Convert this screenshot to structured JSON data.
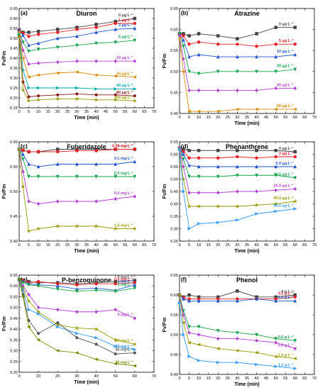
{
  "chart_data": [
    {
      "type": "line",
      "letter": "(a)",
      "title": "Diuron",
      "xlabel": "Time (min)",
      "ylabel": "Fv/Fm",
      "xlim": [
        0,
        70
      ],
      "ylim": [
        0.15,
        0.65
      ],
      "xticks": [
        0,
        5,
        10,
        15,
        20,
        25,
        30,
        35,
        40,
        45,
        50,
        55,
        60,
        65,
        70
      ],
      "yticks": [
        0.15,
        0.2,
        0.25,
        0.3,
        0.35,
        0.4,
        0.45,
        0.5,
        0.55,
        0.6,
        0.65
      ],
      "x": [
        0,
        2,
        5,
        10,
        20,
        30,
        40,
        50,
        60
      ],
      "series": [
        {
          "name": "0 μg·L⁻¹",
          "color": "#444444",
          "marker": "square",
          "values": [
            0.54,
            0.53,
            0.53,
            0.535,
            0.545,
            0.555,
            0.57,
            0.585,
            0.6
          ]
        },
        {
          "name": "1 μg·L⁻¹",
          "color": "#e8202a",
          "marker": "circle",
          "values": [
            0.54,
            0.525,
            0.51,
            0.52,
            0.53,
            0.545,
            0.555,
            0.575,
            0.575
          ]
        },
        {
          "name": "3 μg·L⁻¹",
          "color": "#2255cc",
          "marker": "triangle",
          "values": [
            0.54,
            0.515,
            0.465,
            0.475,
            0.5,
            0.51,
            0.53,
            0.545,
            0.55
          ]
        },
        {
          "name": "5 μg·L⁻¹",
          "color": "#15a34a",
          "marker": "triangle-down",
          "values": [
            0.53,
            0.48,
            0.435,
            0.445,
            0.455,
            0.465,
            0.475,
            0.48,
            0.49
          ]
        },
        {
          "name": "10 μg·L⁻¹",
          "color": "#b040d0",
          "marker": "diamond",
          "values": [
            0.53,
            0.44,
            0.37,
            0.375,
            0.38,
            0.385,
            0.385,
            0.385,
            0.385
          ]
        },
        {
          "name": "20 μg·L⁻¹",
          "color": "#d68a00",
          "marker": "triangle-left",
          "values": [
            0.53,
            0.4,
            0.305,
            0.315,
            0.325,
            0.33,
            0.315,
            0.31,
            0.305
          ]
        },
        {
          "name": "40 μg·L⁻¹",
          "color": "#00aaaa",
          "marker": "triangle-right",
          "values": [
            0.52,
            0.34,
            0.25,
            0.25,
            0.25,
            0.25,
            0.245,
            0.245,
            0.245
          ]
        },
        {
          "name": "80 μg·L⁻¹",
          "color": "#8b1a1a",
          "marker": "hexagon",
          "values": [
            0.51,
            0.28,
            0.205,
            0.21,
            0.215,
            0.22,
            0.215,
            0.215,
            0.21
          ]
        },
        {
          "name": "160 μg·L⁻¹",
          "color": "#9a9a00",
          "marker": "star",
          "values": [
            0.51,
            0.24,
            0.185,
            0.19,
            0.195,
            0.195,
            0.19,
            0.19,
            0.185
          ]
        }
      ]
    },
    {
      "type": "line",
      "letter": "(b)",
      "title": "Atrazine",
      "xlabel": "Time (min)",
      "ylabel": "Fv/Fm",
      "xlim": [
        0,
        70
      ],
      "ylim": [
        0.4,
        0.65
      ],
      "xticks": [
        0,
        5,
        10,
        15,
        20,
        25,
        30,
        35,
        40,
        45,
        50,
        55,
        60,
        65,
        70
      ],
      "yticks": [
        0.4,
        0.45,
        0.5,
        0.55,
        0.6,
        0.65
      ],
      "x": [
        0,
        2,
        5,
        10,
        20,
        30,
        40,
        50,
        60
      ],
      "series": [
        {
          "name": "0 μg·L⁻¹",
          "color": "#444444",
          "marker": "square",
          "values": [
            0.59,
            0.59,
            0.585,
            0.59,
            0.585,
            0.578,
            0.59,
            0.605,
            0.605
          ]
        },
        {
          "name": "5 μg·L⁻¹",
          "color": "#e8202a",
          "marker": "circle",
          "values": [
            0.59,
            0.585,
            0.565,
            0.57,
            0.565,
            0.565,
            0.56,
            0.565,
            0.565
          ]
        },
        {
          "name": "10 μg·L⁻¹",
          "color": "#2255cc",
          "marker": "triangle",
          "values": [
            0.59,
            0.575,
            0.535,
            0.54,
            0.535,
            0.535,
            0.535,
            0.535,
            0.54
          ]
        },
        {
          "name": "20 μg·L⁻¹",
          "color": "#15a34a",
          "marker": "triangle-down",
          "values": [
            0.59,
            0.56,
            0.5,
            0.495,
            0.5,
            0.5,
            0.5,
            0.5,
            0.505
          ]
        },
        {
          "name": "40 μg·L⁻¹",
          "color": "#b040d0",
          "marker": "diamond",
          "values": [
            0.585,
            0.53,
            0.455,
            0.455,
            0.455,
            0.455,
            0.455,
            0.46,
            0.46
          ]
        },
        {
          "name": "50 μg·L⁻¹",
          "color": "#d68a00",
          "marker": "triangle-left",
          "values": [
            0.58,
            0.5,
            0.405,
            0.405,
            0.405,
            0.41,
            0.41,
            0.41,
            0.41
          ]
        }
      ]
    },
    {
      "type": "line",
      "letter": "(c)",
      "title": "Fuberidazole",
      "xlabel": "Time (min)",
      "ylabel": "Fv/Fm",
      "xlim": [
        0,
        70
      ],
      "ylim": [
        0.4,
        0.6
      ],
      "xticks": [
        0,
        5,
        10,
        15,
        20,
        25,
        30,
        35,
        40,
        45,
        50,
        55,
        60,
        65,
        70
      ],
      "yticks": [
        0.4,
        0.45,
        0.5,
        0.55,
        0.6
      ],
      "x": [
        0,
        2,
        5,
        10,
        20,
        30,
        40,
        50,
        60
      ],
      "series": [
        {
          "name": "0 mg·L⁻¹",
          "color": "#444444",
          "marker": "square",
          "values": [
            0.585,
            0.583,
            0.58,
            0.58,
            0.585,
            0.585,
            0.585,
            0.585,
            0.585
          ]
        },
        {
          "name": "0.05 mg·L⁻¹",
          "color": "#e8202a",
          "marker": "circle",
          "values": [
            0.585,
            0.583,
            0.58,
            0.58,
            0.58,
            0.582,
            0.582,
            0.585,
            0.585
          ]
        },
        {
          "name": "0.1 mg·L⁻¹",
          "color": "#2255cc",
          "marker": "triangle",
          "values": [
            0.585,
            0.575,
            0.555,
            0.55,
            0.555,
            0.555,
            0.555,
            0.555,
            0.56
          ]
        },
        {
          "name": "0.2 mg·L⁻¹",
          "color": "#15a34a",
          "marker": "triangle-down",
          "values": [
            0.585,
            0.565,
            0.53,
            0.53,
            0.53,
            0.53,
            0.53,
            0.53,
            0.53
          ]
        },
        {
          "name": "0.5 mg·L⁻¹",
          "color": "#b040d0",
          "marker": "diamond",
          "values": [
            0.585,
            0.54,
            0.48,
            0.475,
            0.48,
            0.48,
            0.48,
            0.485,
            0.49
          ]
        },
        {
          "name": "1.0 mg·L⁻¹",
          "color": "#9a9a00",
          "marker": "star",
          "values": [
            0.585,
            0.51,
            0.42,
            0.425,
            0.43,
            0.43,
            0.43,
            0.425,
            0.425
          ]
        }
      ]
    },
    {
      "type": "line",
      "letter": "(d)",
      "title": "Phenanthrene",
      "xlabel": "Time (min)",
      "ylabel": "Fv/Fm",
      "xlim": [
        0,
        70
      ],
      "ylim": [
        0.25,
        0.65
      ],
      "xticks": [
        0,
        5,
        10,
        15,
        20,
        25,
        30,
        35,
        40,
        45,
        50,
        55,
        60,
        65,
        70
      ],
      "yticks": [
        0.25,
        0.3,
        0.35,
        0.4,
        0.45,
        0.5,
        0.55,
        0.6,
        0.65
      ],
      "x": [
        0,
        2,
        5,
        10,
        20,
        30,
        40,
        50,
        60
      ],
      "series": [
        {
          "name": "0 μg·L⁻¹",
          "color": "#444444",
          "marker": "square",
          "values": [
            0.625,
            0.62,
            0.615,
            0.615,
            0.615,
            0.615,
            0.615,
            0.615,
            0.61
          ]
        },
        {
          "name": "2 μg·L⁻¹",
          "color": "#e8202a",
          "marker": "circle",
          "values": [
            0.625,
            0.61,
            0.585,
            0.585,
            0.585,
            0.59,
            0.585,
            0.59,
            0.59
          ]
        },
        {
          "name": "5.0 μg·L⁻¹",
          "color": "#2255cc",
          "marker": "triangle",
          "values": [
            0.625,
            0.6,
            0.555,
            0.55,
            0.55,
            0.55,
            0.55,
            0.55,
            0.55
          ]
        },
        {
          "name": "10.0 μg·L⁻¹",
          "color": "#15a34a",
          "marker": "triangle-down",
          "values": [
            0.625,
            0.58,
            0.51,
            0.51,
            0.51,
            0.515,
            0.515,
            0.515,
            0.505
          ]
        },
        {
          "name": "20.0 μg·L⁻¹",
          "color": "#b040d0",
          "marker": "diamond",
          "values": [
            0.625,
            0.55,
            0.445,
            0.445,
            0.445,
            0.45,
            0.45,
            0.455,
            0.46
          ]
        },
        {
          "name": "40.0 μg·L⁻¹",
          "color": "#9a9a00",
          "marker": "star",
          "values": [
            0.62,
            0.5,
            0.39,
            0.39,
            0.39,
            0.39,
            0.395,
            0.4,
            0.41
          ]
        },
        {
          "name": "80.0 μg·L⁻¹",
          "color": "#3399ff",
          "marker": "triangle-right",
          "values": [
            0.62,
            0.45,
            0.3,
            0.32,
            0.325,
            0.335,
            0.36,
            0.37,
            0.38
          ]
        }
      ]
    },
    {
      "type": "line",
      "letter": "(e)",
      "title": "P-benzoquinone",
      "xlabel": "Time (min)",
      "ylabel": "Fv/Fm",
      "xlim": [
        0,
        70
      ],
      "ylim": [
        0.2,
        0.65
      ],
      "xticks": [
        0,
        10,
        20,
        30,
        40,
        50,
        60,
        70
      ],
      "yticks": [
        0.2,
        0.25,
        0.3,
        0.35,
        0.4,
        0.45,
        0.5,
        0.55,
        0.6,
        0.65
      ],
      "x": [
        0,
        2,
        5,
        10,
        20,
        30,
        40,
        50,
        60
      ],
      "series": [
        {
          "name": "0 mg·L⁻¹",
          "color": "#444444",
          "marker": "square",
          "values": [
            0.63,
            0.625,
            0.62,
            0.615,
            0.615,
            0.61,
            0.615,
            0.62,
            0.625
          ]
        },
        {
          "name": "0.5 mg·L⁻¹",
          "color": "#e8202a",
          "marker": "circle",
          "values": [
            0.63,
            0.625,
            0.615,
            0.62,
            0.61,
            0.605,
            0.61,
            0.61,
            0.615
          ]
        },
        {
          "name": "1 mg·L⁻¹",
          "color": "#2255cc",
          "marker": "triangle",
          "values": [
            0.63,
            0.62,
            0.61,
            0.605,
            0.6,
            0.585,
            0.59,
            0.58,
            0.605
          ]
        },
        {
          "name": "2 mg·L⁻¹",
          "color": "#15a34a",
          "marker": "triangle-down",
          "values": [
            0.63,
            0.615,
            0.605,
            0.6,
            0.585,
            0.575,
            0.58,
            0.575,
            0.59
          ]
        },
        {
          "name": "5 mg·L⁻¹",
          "color": "#b040d0",
          "marker": "diamond",
          "values": [
            0.63,
            0.6,
            0.56,
            0.5,
            0.49,
            0.48,
            0.48,
            0.49,
            0.45
          ]
        },
        {
          "name": "10 mg·L⁻¹",
          "color": "#9a9a00",
          "marker": "star",
          "values": [
            0.63,
            0.59,
            0.53,
            0.48,
            0.42,
            0.405,
            0.4,
            0.35,
            0.33
          ]
        },
        {
          "name": "20 mg·L⁻¹",
          "color": "#3399ff",
          "marker": "triangle-right",
          "values": [
            0.63,
            0.58,
            0.49,
            0.47,
            0.41,
            0.38,
            0.36,
            0.32,
            0.305
          ]
        },
        {
          "name": "40 mg·L⁻¹",
          "color": "#555555",
          "marker": "hexagon",
          "values": [
            0.63,
            0.56,
            0.44,
            0.38,
            0.43,
            0.36,
            0.33,
            0.285,
            0.29
          ]
        },
        {
          "name": "50 mg·L⁻¹",
          "color": "#6b8e00",
          "marker": "triangle-left",
          "values": [
            0.63,
            0.55,
            0.41,
            0.35,
            0.3,
            0.29,
            0.26,
            0.24,
            0.23
          ]
        }
      ]
    },
    {
      "type": "line",
      "letter": "(f)",
      "title": "Phenol",
      "xlabel": "Time (min)",
      "ylabel": "Fv/Fm",
      "xlim": [
        0,
        70
      ],
      "ylim": [
        0.4,
        0.65
      ],
      "xticks": [
        0,
        5,
        10,
        15,
        20,
        25,
        30,
        35,
        40,
        45,
        50,
        55,
        60,
        65,
        70
      ],
      "yticks": [
        0.4,
        0.45,
        0.5,
        0.55,
        0.6,
        0.65
      ],
      "x": [
        0,
        2,
        5,
        10,
        20,
        30,
        40,
        50,
        60
      ],
      "series": [
        {
          "name": "0 g·L⁻¹",
          "color": "#444444",
          "marker": "square",
          "values": [
            0.6,
            0.595,
            0.6,
            0.595,
            0.595,
            0.61,
            0.595,
            0.595,
            0.6
          ]
        },
        {
          "name": "0.2 g·L⁻¹",
          "color": "#e8202a",
          "marker": "circle",
          "values": [
            0.6,
            0.593,
            0.59,
            0.59,
            0.59,
            0.59,
            0.59,
            0.59,
            0.595
          ]
        },
        {
          "name": "0.4 g·L⁻¹",
          "color": "#2255cc",
          "marker": "triangle",
          "values": [
            0.6,
            0.59,
            0.585,
            0.585,
            0.585,
            0.585,
            0.59,
            0.585,
            0.585
          ]
        },
        {
          "name": "0.6 g·L⁻¹",
          "color": "#15a34a",
          "marker": "triangle-down",
          "values": [
            0.6,
            0.56,
            0.52,
            0.52,
            0.51,
            0.505,
            0.5,
            0.49,
            0.485
          ]
        },
        {
          "name": "0.8 g·L⁻¹",
          "color": "#b040d0",
          "marker": "diamond",
          "values": [
            0.6,
            0.55,
            0.505,
            0.5,
            0.49,
            0.49,
            0.485,
            0.48,
            0.465
          ]
        },
        {
          "name": "1.0 g·L⁻¹",
          "color": "#9a9a00",
          "marker": "triangle-left",
          "values": [
            0.6,
            0.53,
            0.48,
            0.475,
            0.465,
            0.46,
            0.455,
            0.445,
            0.44
          ]
        },
        {
          "name": "1.2 g·L⁻¹",
          "color": "#3399ff",
          "marker": "triangle-right",
          "values": [
            0.58,
            0.5,
            0.445,
            0.435,
            0.43,
            0.43,
            0.425,
            0.42,
            0.415
          ]
        }
      ]
    }
  ]
}
